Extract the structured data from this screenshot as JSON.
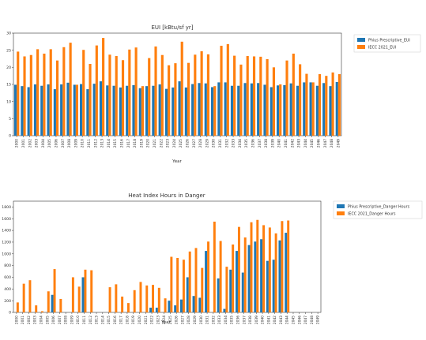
{
  "colors": {
    "series1": "#1f77b4",
    "series2": "#ff7f0e"
  },
  "chart_data": [
    {
      "type": "bar",
      "title": "EUI [kBtu/sf yr]",
      "xlabel": "Year",
      "ylabel": "",
      "ylim": [
        0,
        30
      ],
      "yticks": [
        0,
        5,
        10,
        15,
        20,
        25,
        30
      ],
      "grid": false,
      "legend_position": "outside-top-right",
      "categories": [
        "2000",
        "2001",
        "2002",
        "2003",
        "2004",
        "2005",
        "2006",
        "2007",
        "2008",
        "2009",
        "2010",
        "2011",
        "2012",
        "2013",
        "2014",
        "2015",
        "2016",
        "2017",
        "2018",
        "2019",
        "2020",
        "2021",
        "2022",
        "2023",
        "2024",
        "2025",
        "2026",
        "2027",
        "2028",
        "2029",
        "2030",
        "2031",
        "2032",
        "2033",
        "2034",
        "2035",
        "2036",
        "2037",
        "2038",
        "2039",
        "2040",
        "2041",
        "2042",
        "2043",
        "2044",
        "2045",
        "2046",
        "2047",
        "2048",
        "2049"
      ],
      "series": [
        {
          "name": "Phius Prescriptive_EUI",
          "values": [
            14.9,
            14.5,
            14.2,
            15.0,
            14.6,
            15.0,
            13.6,
            15.0,
            15.5,
            14.9,
            15.1,
            13.6,
            15.2,
            15.9,
            14.7,
            14.6,
            14.1,
            14.6,
            14.8,
            13.9,
            14.5,
            14.6,
            15.0,
            13.7,
            14.1,
            15.9,
            14.1,
            15.1,
            15.4,
            15.3,
            14.2,
            15.6,
            15.6,
            14.6,
            14.6,
            15.4,
            15.3,
            15.4,
            14.9,
            14.2,
            14.7,
            14.8,
            15.3,
            14.6,
            15.6,
            15.6,
            14.6,
            15.4,
            14.5,
            15.7
          ]
        },
        {
          "name": "IECC 2021_EUI",
          "values": [
            24.6,
            23.2,
            23.6,
            25.3,
            24.0,
            25.3,
            22.0,
            25.9,
            27.2,
            14.9,
            25.1,
            21.0,
            26.4,
            28.6,
            23.7,
            23.3,
            22.1,
            25.2,
            25.8,
            14.5,
            22.7,
            26.1,
            23.6,
            20.6,
            21.2,
            27.5,
            21.3,
            23.7,
            24.7,
            23.8,
            14.5,
            26.3,
            26.8,
            23.4,
            20.8,
            23.3,
            23.2,
            23.1,
            22.4,
            20.0,
            15.0,
            22.0,
            24.0,
            20.9,
            18.1,
            15.6,
            18.0,
            17.5,
            18.5,
            18.0
          ]
        }
      ]
    },
    {
      "type": "bar",
      "title": "Heat Index Hours in Danger",
      "xlabel": "Year",
      "ylabel": "",
      "ylim": [
        0,
        1900
      ],
      "yticks": [
        0,
        200,
        400,
        600,
        800,
        1000,
        1200,
        1400,
        1600,
        1800
      ],
      "grid": false,
      "legend_position": "outside-top-right",
      "categories": [
        "2000",
        "2001",
        "2002",
        "2003",
        "2004",
        "2005",
        "2006",
        "2007",
        "2008",
        "2009",
        "2010",
        "2011",
        "2012",
        "2013",
        "2014",
        "2015",
        "2016",
        "2017",
        "2018",
        "2019",
        "2020",
        "2021",
        "2022",
        "2023",
        "2024",
        "2025",
        "2026",
        "2027",
        "2028",
        "2029",
        "2030",
        "2031",
        "2032",
        "2033",
        "2034",
        "2035",
        "2036",
        "2037",
        "2038",
        "2039",
        "2040",
        "2041",
        "2042",
        "2043",
        "2044",
        "2045",
        "2046",
        "2047",
        "2048",
        "2049"
      ],
      "series": [
        {
          "name": "Phius Prescriptive_Danger Hours",
          "values": [
            0,
            0,
            0,
            0,
            0,
            0,
            300,
            0,
            0,
            0,
            0,
            600,
            0,
            0,
            0,
            0,
            0,
            0,
            0,
            0,
            0,
            0,
            80,
            80,
            0,
            200,
            120,
            220,
            600,
            280,
            250,
            1050,
            0,
            580,
            60,
            730,
            1050,
            680,
            1150,
            1210,
            1250,
            880,
            900,
            1230,
            1360,
            0,
            0,
            0,
            0,
            0
          ]
        },
        {
          "name": "IECC 2021_Danger Hours",
          "values": [
            170,
            490,
            550,
            120,
            20,
            360,
            740,
            230,
            0,
            600,
            440,
            730,
            720,
            0,
            0,
            430,
            480,
            270,
            160,
            380,
            520,
            460,
            470,
            420,
            240,
            950,
            930,
            900,
            1040,
            1100,
            760,
            1210,
            1550,
            1220,
            780,
            1160,
            1460,
            1280,
            1540,
            1580,
            1490,
            1450,
            1350,
            1560,
            1570,
            0,
            0,
            0,
            0,
            0
          ]
        }
      ]
    }
  ]
}
